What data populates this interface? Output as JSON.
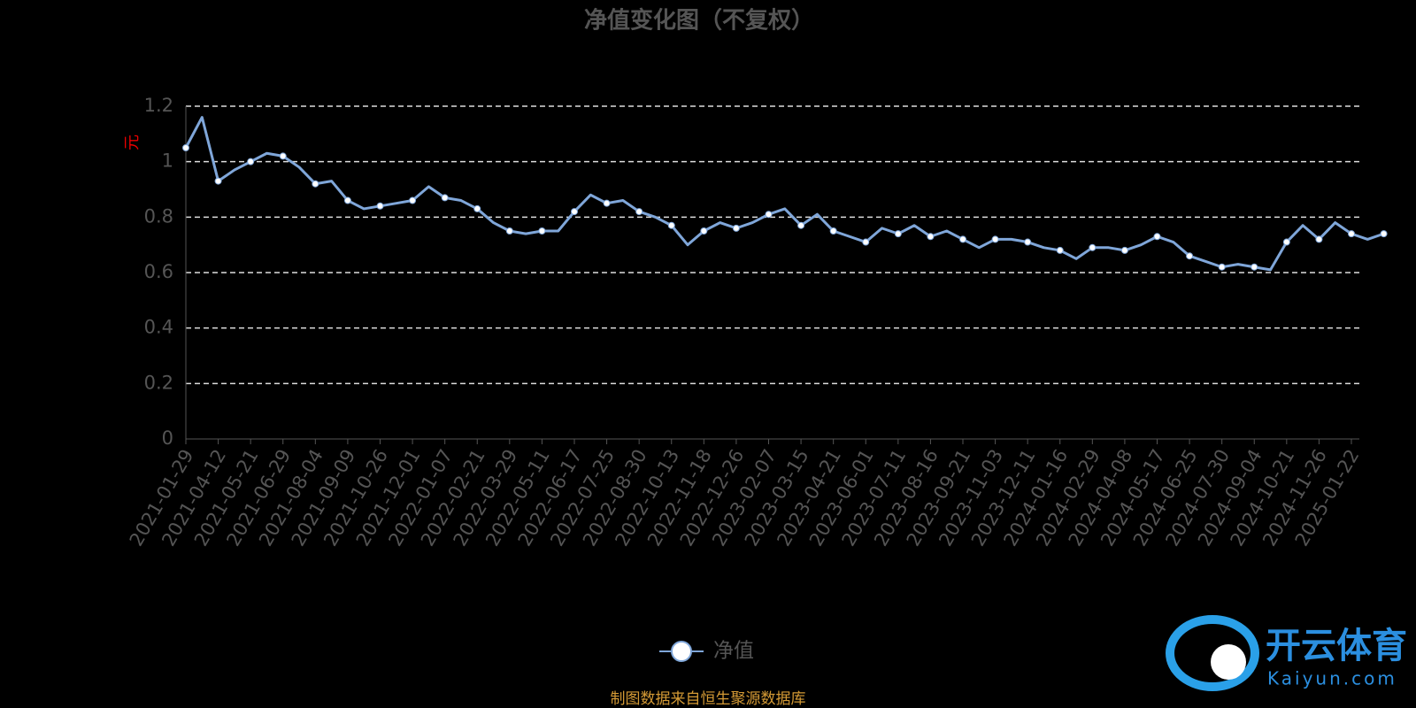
{
  "chart_data": {
    "type": "line",
    "title": "净值变化图（不复权）",
    "y_label": "元",
    "categories": [
      "2021-01-29",
      null,
      "2021-04-12",
      null,
      "2021-05-21",
      null,
      "2021-06-29",
      null,
      "2021-08-04",
      null,
      "2021-09-09",
      null,
      "2021-10-26",
      null,
      "2021-12-01",
      null,
      "2022-01-07",
      null,
      "2022-02-21",
      null,
      "2022-03-29",
      null,
      "2022-05-11",
      null,
      "2022-06-17",
      null,
      "2022-07-25",
      null,
      "2022-08-30",
      null,
      "2022-10-13",
      null,
      "2022-11-18",
      null,
      "2022-12-26",
      null,
      "2023-02-07",
      null,
      "2023-03-15",
      null,
      "2023-04-21",
      null,
      "2023-06-01",
      null,
      "2023-07-11",
      null,
      "2023-08-16",
      null,
      "2023-09-21",
      null,
      "2023-11-03",
      null,
      "2023-12-11",
      null,
      "2024-01-16",
      null,
      "2024-02-29",
      null,
      "2024-04-08",
      null,
      "2024-05-17",
      null,
      "2024-06-25",
      null,
      "2024-07-30",
      null,
      "2024-09-04",
      null,
      "2024-10-21",
      null,
      "2024-11-26",
      null,
      "2025-01-22",
      null,
      null
    ],
    "series": [
      {
        "name": "净值",
        "color": "#7fa6d9",
        "values": [
          1.05,
          1.16,
          0.93,
          0.97,
          1.0,
          1.03,
          1.02,
          0.98,
          0.92,
          0.93,
          0.86,
          0.83,
          0.84,
          0.85,
          0.86,
          0.91,
          0.87,
          0.86,
          0.83,
          0.78,
          0.75,
          0.74,
          0.75,
          0.75,
          0.82,
          0.88,
          0.85,
          0.86,
          0.82,
          0.8,
          0.77,
          0.7,
          0.75,
          0.78,
          0.76,
          0.78,
          0.81,
          0.83,
          0.77,
          0.81,
          0.75,
          0.73,
          0.71,
          0.76,
          0.74,
          0.77,
          0.73,
          0.75,
          0.72,
          0.69,
          0.72,
          0.72,
          0.71,
          0.69,
          0.68,
          0.65,
          0.69,
          0.69,
          0.68,
          0.7,
          0.73,
          0.71,
          0.66,
          0.64,
          0.62,
          0.63,
          0.62,
          0.61,
          0.71,
          0.77,
          0.72,
          0.78,
          0.74,
          0.72,
          0.74
        ]
      }
    ],
    "ylim": [
      0,
      1.2
    ],
    "yticks": [
      0,
      0.2,
      0.4,
      0.6,
      0.8,
      1,
      1.2
    ],
    "grid": true,
    "source": "制图数据来自恒生聚源数据库"
  },
  "watermark": {
    "brand": "开云体育",
    "site": "Kaiyun.com"
  }
}
